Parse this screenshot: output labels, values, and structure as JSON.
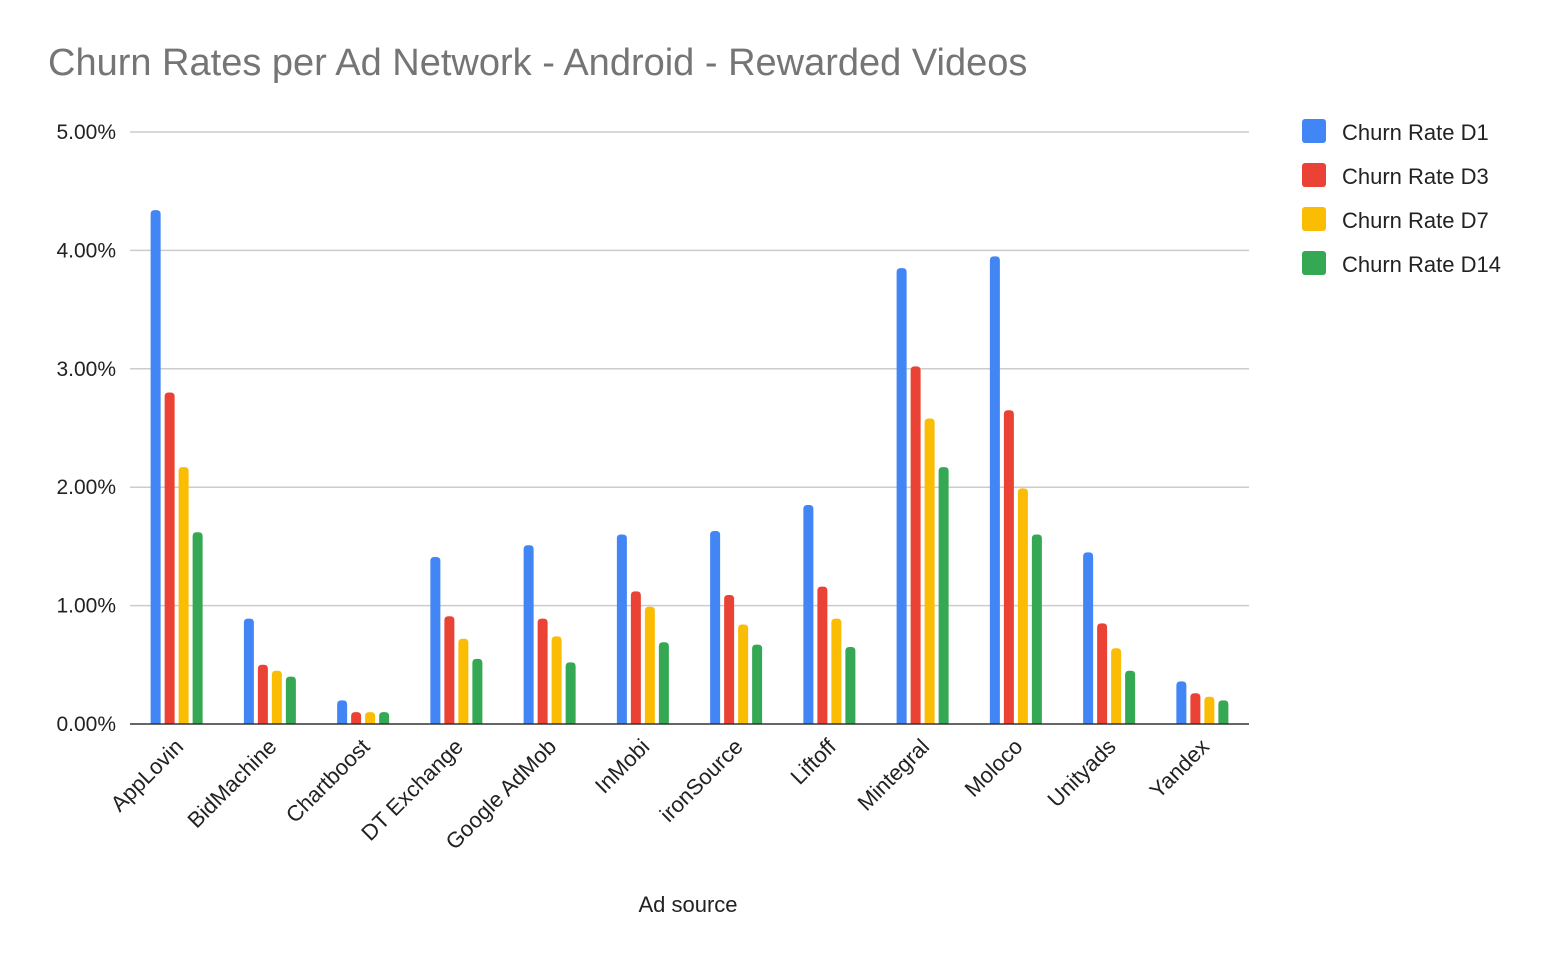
{
  "chart_data": {
    "type": "bar",
    "title": "Churn Rates per Ad Network - Android - Rewarded Videos",
    "xlabel": "Ad source",
    "ylabel": "",
    "ylim": [
      0,
      0.05
    ],
    "y_ticks": [
      "0.00%",
      "1.00%",
      "2.00%",
      "3.00%",
      "4.00%",
      "5.00%"
    ],
    "y_tick_values": [
      0,
      0.01,
      0.02,
      0.03,
      0.04,
      0.05
    ],
    "grid": true,
    "legend_position": "right",
    "categories": [
      "AppLovin",
      "BidMachine",
      "Chartboost",
      "DT Exchange",
      "Google AdMob",
      "InMobi",
      "ironSource",
      "Liftoff",
      "Mintegral",
      "Moloco",
      "Unityads",
      "Yandex"
    ],
    "series": [
      {
        "name": "Churn Rate D1",
        "color": "#4285F4",
        "values": [
          0.0434,
          0.0089,
          0.002,
          0.0141,
          0.0151,
          0.016,
          0.0163,
          0.0185,
          0.0385,
          0.0395,
          0.0145,
          0.0036
        ]
      },
      {
        "name": "Churn Rate D3",
        "color": "#EA4335",
        "values": [
          0.028,
          0.005,
          0.001,
          0.0091,
          0.0089,
          0.0112,
          0.0109,
          0.0116,
          0.0302,
          0.0265,
          0.0085,
          0.0026
        ]
      },
      {
        "name": "Churn Rate D7",
        "color": "#FBBC04",
        "values": [
          0.0217,
          0.0045,
          0.001,
          0.0072,
          0.0074,
          0.0099,
          0.0084,
          0.0089,
          0.0258,
          0.0199,
          0.0064,
          0.0023
        ]
      },
      {
        "name": "Churn Rate D14",
        "color": "#34A853",
        "values": [
          0.0162,
          0.004,
          0.001,
          0.0055,
          0.0052,
          0.0069,
          0.0067,
          0.0065,
          0.0217,
          0.016,
          0.0045,
          0.002
        ]
      }
    ]
  },
  "colors": {
    "gridline": "#cccccc",
    "axis": "#333333",
    "title": "#757575",
    "text": "#222222"
  }
}
